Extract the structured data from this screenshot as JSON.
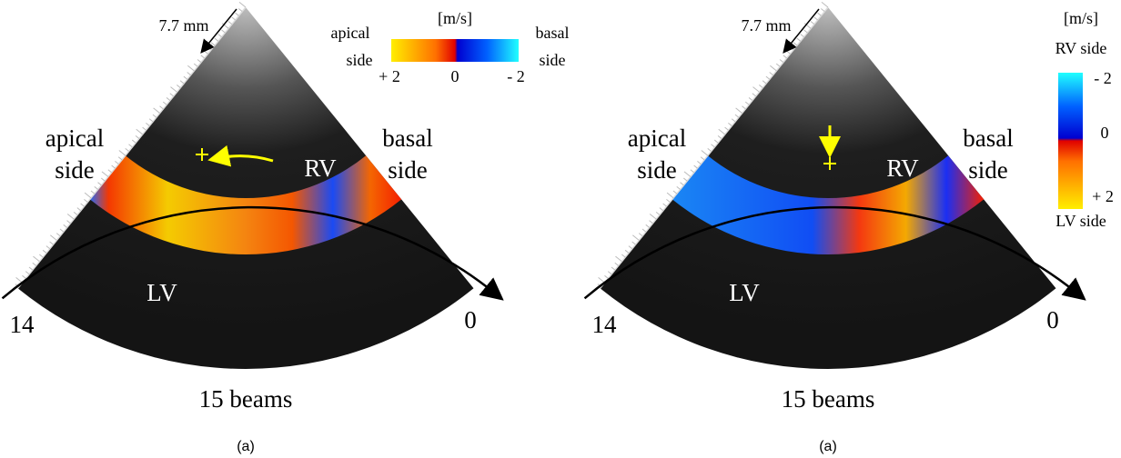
{
  "panels": [
    {
      "scale": "7.7 mm",
      "unit": "[m/s]",
      "colorbar_left": [
        "apical",
        "side"
      ],
      "colorbar_right": [
        "basal",
        "side"
      ],
      "colorbar_ticks": [
        "+ 2",
        "0",
        "- 2"
      ],
      "left_label": [
        "apical",
        "side"
      ],
      "right_label": [
        "basal",
        "side"
      ],
      "rv": "RV",
      "lv": "LV",
      "beam_first": "14",
      "beam_last": "0",
      "beams": "15 beams",
      "caption": "(a)"
    },
    {
      "scale": "7.7 mm",
      "unit": "[m/s]",
      "colorbar_top": "RV side",
      "colorbar_bottom": "LV side",
      "colorbar_ticks": [
        "- 2",
        "0",
        "+ 2"
      ],
      "left_label": [
        "apical",
        "side"
      ],
      "right_label": [
        "basal",
        "side"
      ],
      "rv": "RV",
      "lv": "LV",
      "beam_first": "14",
      "beam_last": "0",
      "beams": "15 beams",
      "caption": "(a)"
    }
  ]
}
